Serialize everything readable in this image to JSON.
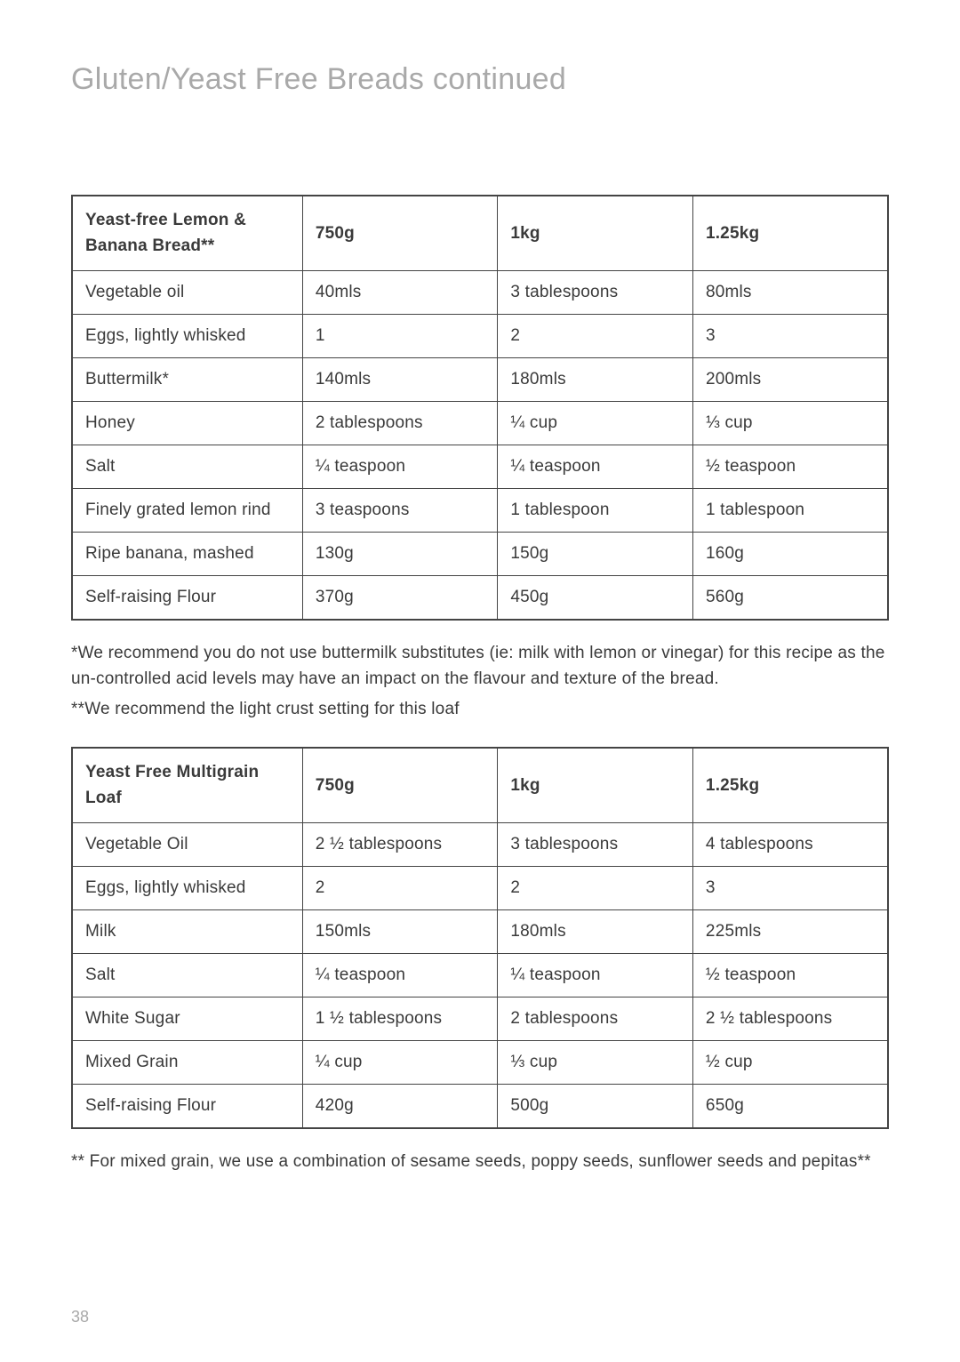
{
  "page_title": "Gluten/Yeast Free Breads continued",
  "page_number": "38",
  "table1": {
    "header": {
      "name": "Yeast-free Lemon & Banana Bread**",
      "col1": "750g",
      "col2": "1kg",
      "col3": "1.25kg"
    },
    "rows": [
      {
        "name": "Vegetable oil",
        "c1": "40mls",
        "c2": "3 tablespoons",
        "c3": "80mls"
      },
      {
        "name": "Eggs, lightly whisked",
        "c1": "1",
        "c2": "2",
        "c3": "3"
      },
      {
        "name": "Buttermilk*",
        "c1": "140mls",
        "c2": "180mls",
        "c3": "200mls"
      },
      {
        "name": "Honey",
        "c1": "2 tablespoons",
        "c2": "¼ cup",
        "c3": "⅓ cup"
      },
      {
        "name": "Salt",
        "c1": "¼ teaspoon",
        "c2": "¼ teaspoon",
        "c3": "½ teaspoon"
      },
      {
        "name": "Finely grated lemon rind",
        "c1": "3 teaspoons",
        "c2": "1 tablespoon",
        "c3": "1 tablespoon"
      },
      {
        "name": "Ripe banana, mashed",
        "c1": "130g",
        "c2": "150g",
        "c3": "160g"
      },
      {
        "name": "Self-raising Flour",
        "c1": "370g",
        "c2": "450g",
        "c3": "560g"
      }
    ]
  },
  "note1a": "*We recommend you do not use buttermilk substitutes (ie: milk with lemon or vinegar) for this recipe as the un-controlled acid levels may have an impact on the flavour and texture of the bread.",
  "note1b": "**We recommend the light crust setting for this loaf",
  "table2": {
    "header": {
      "name": "Yeast Free Multigrain Loaf",
      "col1": "750g",
      "col2": "1kg",
      "col3": "1.25kg"
    },
    "rows": [
      {
        "name": "Vegetable Oil",
        "c1": "2 ½ tablespoons",
        "c2": "3 tablespoons",
        "c3": "4 tablespoons"
      },
      {
        "name": "Eggs, lightly whisked",
        "c1": "2",
        "c2": "2",
        "c3": "3"
      },
      {
        "name": "Milk",
        "c1": "150mls",
        "c2": "180mls",
        "c3": "225mls"
      },
      {
        "name": "Salt",
        "c1": "¼ teaspoon",
        "c2": "¼ teaspoon",
        "c3": "½ teaspoon"
      },
      {
        "name": "White Sugar",
        "c1": "1 ½ tablespoons",
        "c2": "2 tablespoons",
        "c3": "2 ½ tablespoons"
      },
      {
        "name": "Mixed Grain",
        "c1": "¼ cup",
        "c2": "⅓ cup",
        "c3": "½ cup"
      },
      {
        "name": "Self-raising Flour",
        "c1": "420g",
        "c2": "500g",
        "c3": "650g"
      }
    ]
  },
  "note2": "** For mixed grain, we use a combination of sesame seeds, poppy seeds, sunflower seeds and pepitas**"
}
